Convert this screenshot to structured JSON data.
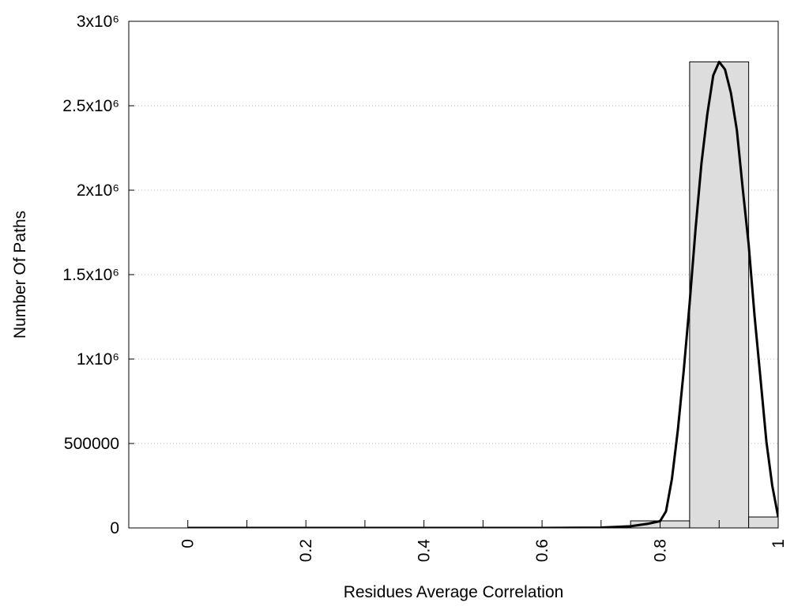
{
  "chart_data": {
    "type": "histogram",
    "xlabel": "Residues Average Correlation",
    "ylabel": "Number Of Paths",
    "bins": [
      0.75,
      0.85,
      0.95,
      1.05
    ],
    "counts": [
      42000,
      2760000,
      65000
    ],
    "bar_color": "#dddddd",
    "curve": {
      "color": "#000000",
      "x": [
        0,
        0.1,
        0.2,
        0.3,
        0.4,
        0.5,
        0.6,
        0.7,
        0.75,
        0.78,
        0.8,
        0.81,
        0.82,
        0.83,
        0.84,
        0.85,
        0.86,
        0.87,
        0.88,
        0.89,
        0.9,
        0.91,
        0.92,
        0.93,
        0.94,
        0.95,
        0.96,
        0.97,
        0.98,
        0.99,
        1.0
      ],
      "values": [
        0,
        0,
        0,
        0,
        0,
        0,
        0,
        2000,
        10000,
        25000,
        40000,
        98000,
        290000,
        580000,
        930000,
        1330000,
        1770000,
        2160000,
        2450000,
        2680000,
        2760000,
        2715000,
        2575000,
        2355000,
        2005000,
        1680000,
        1255000,
        885000,
        510000,
        250000,
        65000
      ]
    },
    "xlim": [
      -0.1,
      1
    ],
    "xticks": [
      0,
      0.2,
      0.4,
      0.6,
      0.8,
      1
    ],
    "xminor_ticks": [
      0.1,
      0.3,
      0.5,
      0.7,
      0.9
    ],
    "ylim": [
      0,
      3000000
    ],
    "yticks": [
      0,
      500000,
      {
        "value": 1000000,
        "label": "1x10⁶"
      },
      {
        "value": 1500000,
        "label": "1.5x10⁶"
      },
      {
        "value": 2000000,
        "label": "2x10⁶"
      },
      {
        "value": 2500000,
        "label": "2.5x10⁶"
      },
      {
        "value": 3000000,
        "label": "3x10⁶"
      }
    ],
    "grid": true
  }
}
